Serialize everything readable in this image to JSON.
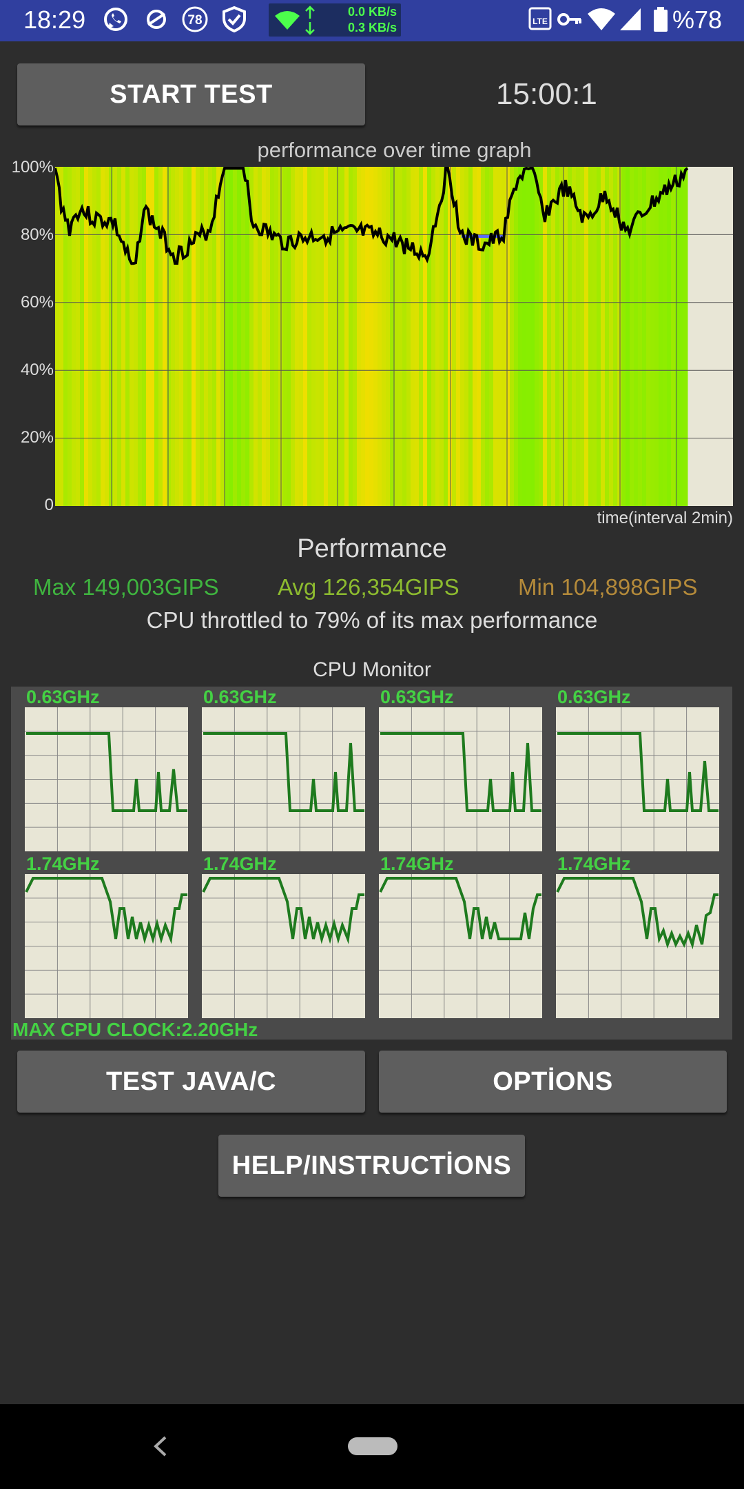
{
  "status_bar": {
    "time": "18:29",
    "net_up": "0.0 KB/s",
    "net_down": "0.3 KB/s",
    "badge_number": "78",
    "battery_text": "%78",
    "icons": [
      "whatsapp-icon",
      "app-icon",
      "badge-78-icon",
      "shield-icon",
      "wifi-icon",
      "up-arrow-icon",
      "down-arrow-icon",
      "volte-icon",
      "vpn-key-icon",
      "wifi-signal-icon",
      "cell-signal-icon",
      "battery-icon"
    ]
  },
  "controls": {
    "start_label": "START TEST",
    "timer": "15:00:1",
    "test_java_label": "TEST JAVA/C",
    "options_label": "OPTİONS",
    "help_label": "HELP/INSTRUCTİONS"
  },
  "graph": {
    "title": "performance over time graph",
    "y_ticks": [
      "100%",
      "80%",
      "60%",
      "40%",
      "20%",
      "0"
    ],
    "x_label": "time(interval 2min)"
  },
  "performance": {
    "title": "Performance",
    "max": "Max 149,003GIPS",
    "avg": "Avg 126,354GIPS",
    "min": "Min 104,898GIPS",
    "throttle_text": "CPU throttled to 79% of its max performance"
  },
  "cpu_monitor": {
    "title": "CPU Monitor",
    "cores": [
      {
        "freq": "0.63GHz"
      },
      {
        "freq": "0.63GHz"
      },
      {
        "freq": "0.63GHz"
      },
      {
        "freq": "0.63GHz"
      },
      {
        "freq": "1.74GHz"
      },
      {
        "freq": "1.74GHz"
      },
      {
        "freq": "1.74GHz"
      },
      {
        "freq": "1.74GHz"
      }
    ],
    "max_clock": "MAX CPU CLOCK:2.20GHz"
  },
  "colors": {
    "status_bar": "#303f9f",
    "accent_green": "#44d144",
    "max_color": "#3fb43f",
    "avg_color": "#8dbb2f",
    "min_color": "#b48a3a"
  }
}
